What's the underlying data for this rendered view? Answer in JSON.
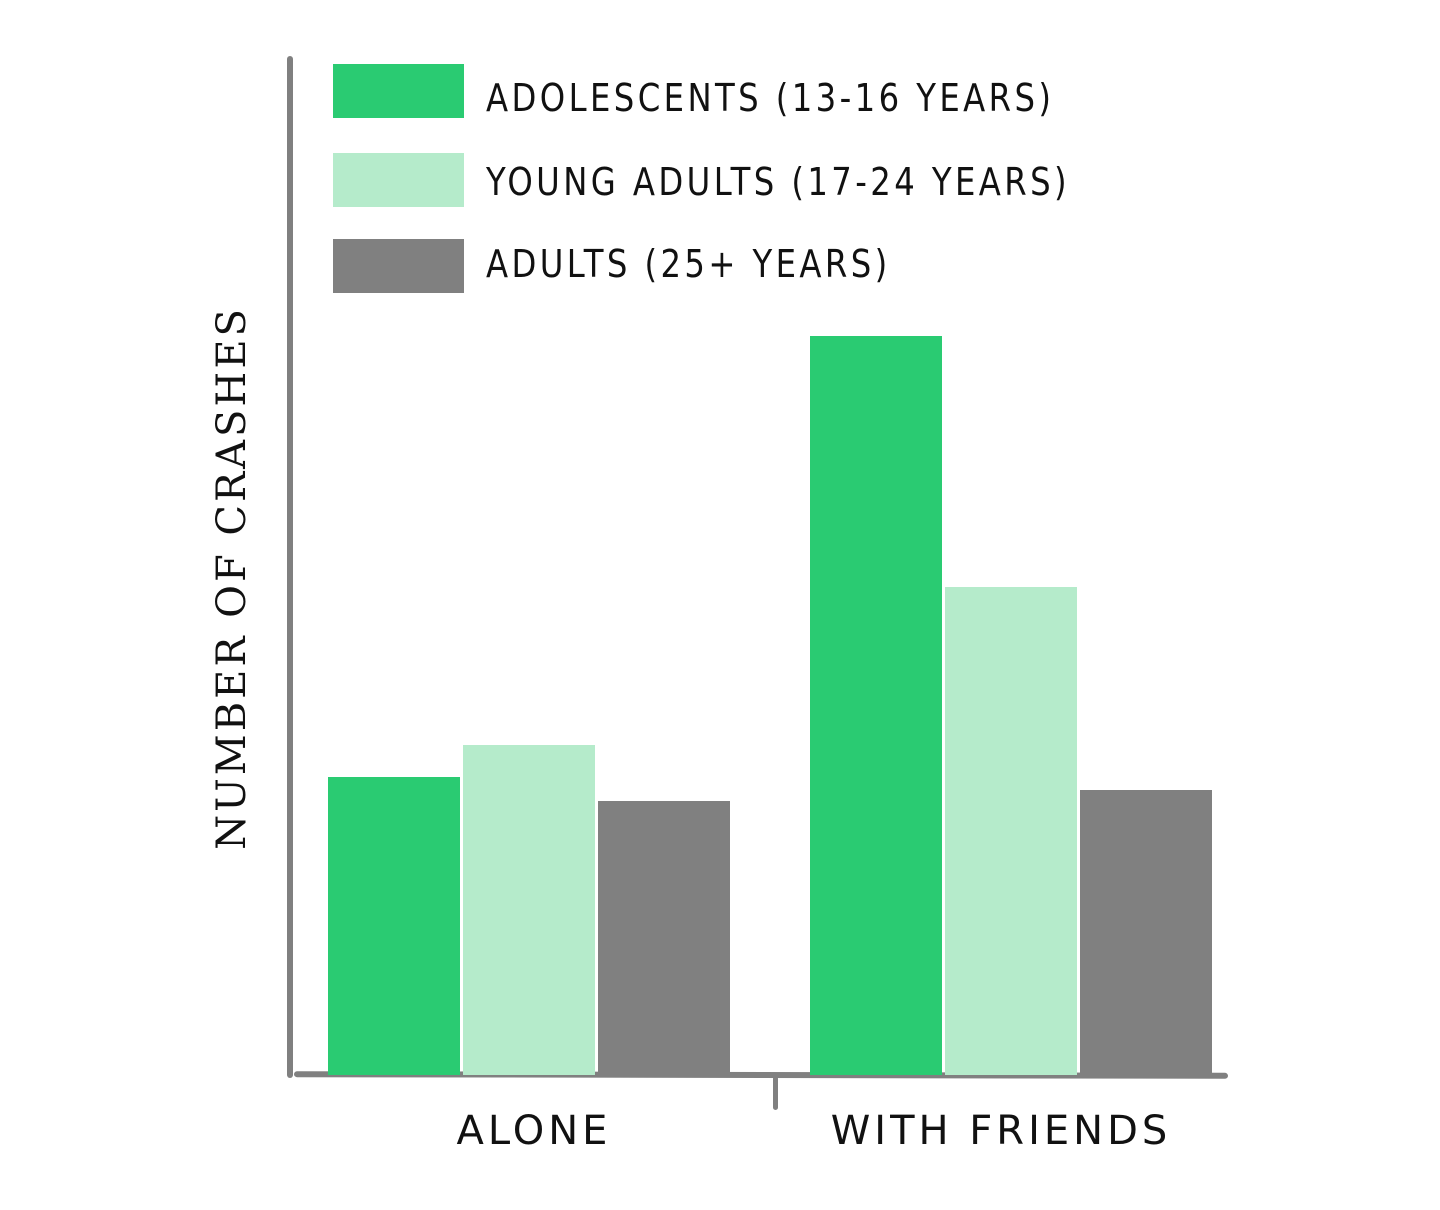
{
  "chart_data": {
    "type": "bar",
    "title": "",
    "xlabel": "",
    "ylabel": "NUMBER OF CRASHES",
    "categories": [
      "ALONE",
      "WITH FRIENDS"
    ],
    "series": [
      {
        "name": "ADOLESCENTS (13-16 YEARS)",
        "color": "#2ACB72",
        "values": [
          298,
          739
        ]
      },
      {
        "name": "YOUNG ADULTS (17-24 YEARS)",
        "color": "#B5EBCB",
        "values": [
          330,
          488
        ]
      },
      {
        "name": "ADULTS (25+ YEARS)",
        "color": "#808080",
        "values": [
          274,
          285
        ]
      }
    ],
    "value_units": "relative (no numeric scale shown)",
    "ylim": [
      0,
      1000
    ],
    "grid": false,
    "legend_position": "top-left inside plot"
  },
  "legend": {
    "items": [
      {
        "label": "ADOLESCENTS  (13-16 YEARS)",
        "color": "#2ACB72"
      },
      {
        "label": "YOUNG ADULTS (17-24 YEARS)",
        "color": "#B5EBCB"
      },
      {
        "label": "ADULTS (25+ YEARS)",
        "color": "#808080"
      }
    ]
  },
  "axes": {
    "y_label": "NUMBER OF CRASHES",
    "x_categories": [
      "ALONE",
      "WITH FRIENDS"
    ]
  }
}
